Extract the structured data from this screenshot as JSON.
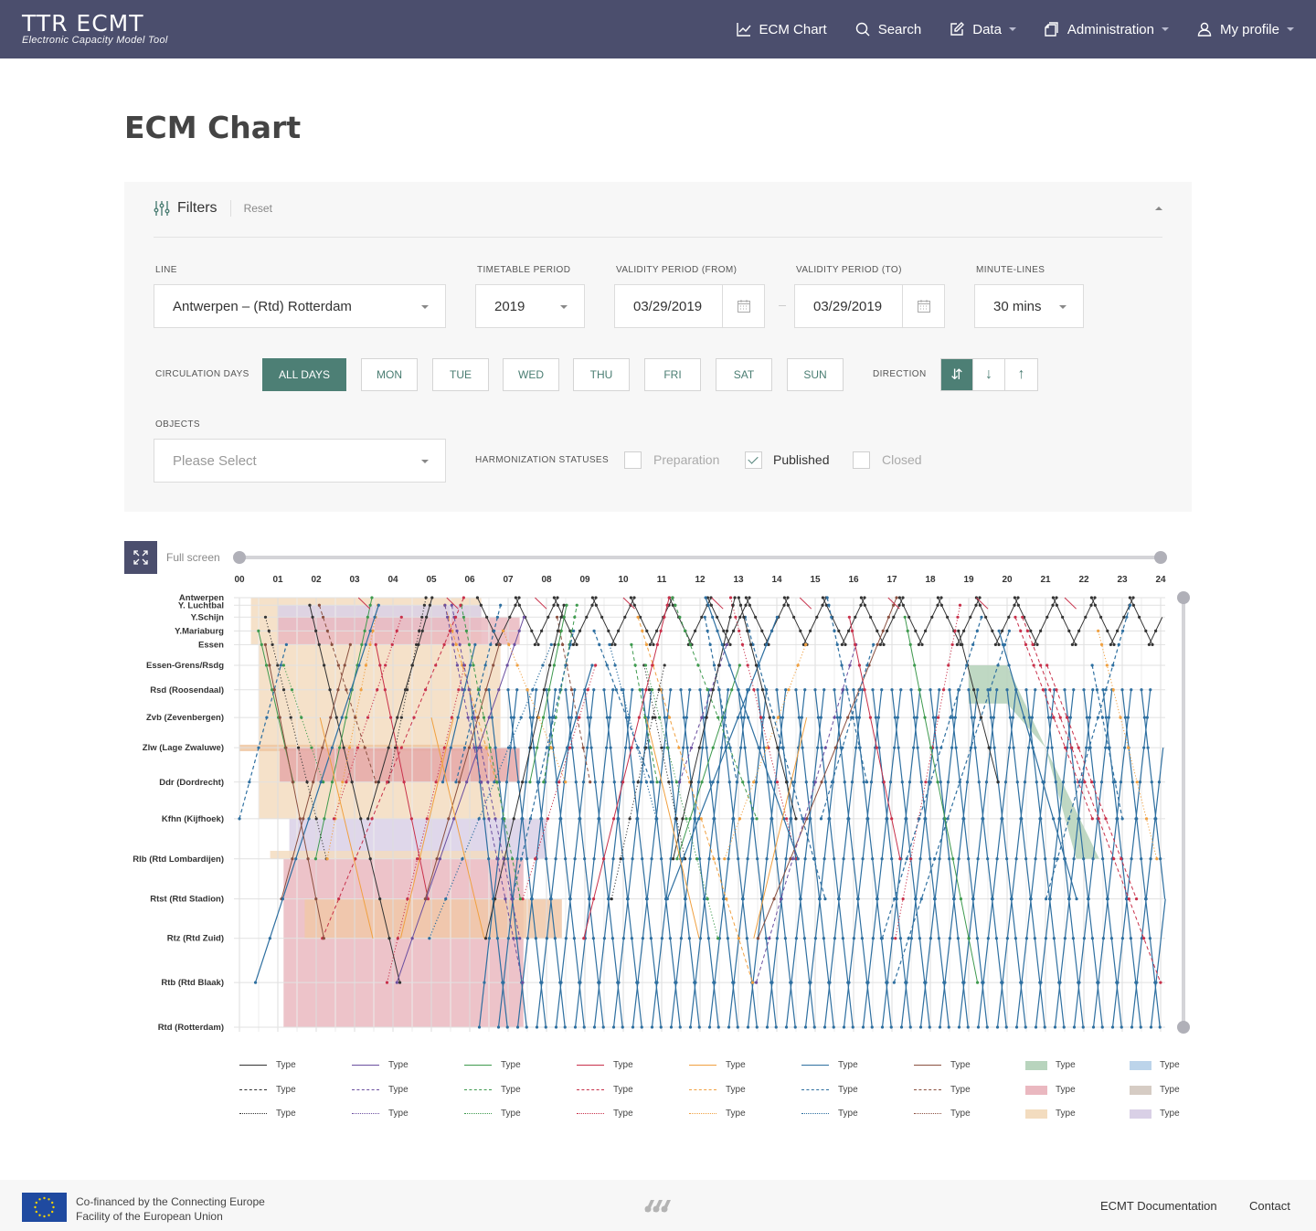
{
  "header": {
    "logo_text": "TTR ECMT",
    "logo_subtitle": "Electronic Capacity Model Tool",
    "nav": [
      {
        "label": "ECM Chart",
        "icon": "chart-line-icon",
        "has_caret": false
      },
      {
        "label": "Search",
        "icon": "search-icon",
        "has_caret": false
      },
      {
        "label": "Data",
        "icon": "edit-icon",
        "has_caret": true
      },
      {
        "label": "Administration",
        "icon": "documents-icon",
        "has_caret": true
      },
      {
        "label": "My profile",
        "icon": "user-icon",
        "has_caret": true
      }
    ]
  },
  "page": {
    "title": "ECM Chart"
  },
  "filters": {
    "title": "Filters",
    "reset_label": "Reset",
    "line": {
      "label": "LINE",
      "value": "Antwerpen – (Rtd) Rotterdam"
    },
    "timetable_period": {
      "label": "TIMETABLE PERIOD",
      "value": "2019"
    },
    "validity_from": {
      "label": "VALIDITY PERIOD (FROM)",
      "value": "03/29/2019"
    },
    "validity_to": {
      "label": "VALIDITY PERIOD (TO)",
      "value": "03/29/2019"
    },
    "minute_lines": {
      "label": "MINUTE-LINES",
      "value": "30 mins"
    },
    "circulation_days": {
      "label": "CIRCULATION DAYS",
      "options": [
        "ALL DAYS",
        "MON",
        "TUE",
        "WED",
        "THU",
        "FRI",
        "SAT",
        "SUN"
      ],
      "selected": "ALL DAYS"
    },
    "direction": {
      "label": "DIRECTION",
      "options": [
        "⇵",
        "↓",
        "↑"
      ],
      "selected": "⇵"
    },
    "objects": {
      "label": "OBJECTS",
      "placeholder": "Please Select"
    },
    "harmonization": {
      "label": "HARMONIZATION STATUSES",
      "options": [
        {
          "label": "Preparation",
          "checked": false
        },
        {
          "label": "Published",
          "checked": true
        },
        {
          "label": "Closed",
          "checked": false
        }
      ]
    }
  },
  "chart_controls": {
    "fullscreen_label": "Full screen"
  },
  "chart_data": {
    "type": "line",
    "hours": [
      "00",
      "01",
      "02",
      "03",
      "04",
      "05",
      "06",
      "07",
      "08",
      "09",
      "10",
      "11",
      "12",
      "13",
      "14",
      "15",
      "16",
      "17",
      "18",
      "19",
      "20",
      "21",
      "22",
      "23",
      "24"
    ],
    "stations": [
      "Antwerpen",
      "Y. Luchtbal",
      "Y.Schijn",
      "Y.Mariaburg",
      "Essen",
      "Essen-Grens/Rsdg",
      "Rsd (Roosendaal)",
      "Zvb (Zevenbergen)",
      "Zlw (Lage Zwaluwe)",
      "Ddr (Dordrecht)",
      "Kfhn (Kijfhoek)",
      "Rlb (Rtd Lombardijen)",
      "Rtst (Rtd Stadion)",
      "Rtz (Rtd Zuid)",
      "Rtb (Rtd Blaak)",
      "Rtd (Rotterdam)"
    ],
    "station_km": [
      0,
      3.3,
      8.5,
      14.5,
      20.5,
      29.5,
      40.2,
      52.3,
      65.5,
      80.5,
      96.5,
      114,
      131.5,
      148.7,
      168,
      187.5
    ],
    "colors": {
      "black": "#333333",
      "purple": "#6b4fa0",
      "green": "#3e9a4e",
      "red": "#c8304a",
      "orange": "#f0a040",
      "blue": "#2e6fa0",
      "brown": "#8a5040"
    },
    "possessions": [
      {
        "from_h": 0.3,
        "to_h": 6.3,
        "st_from": 0,
        "st_to": 4,
        "color": "#f3dcbf"
      },
      {
        "from_h": 1.0,
        "to_h": 6.3,
        "st_from": 1,
        "st_to": 3,
        "color": "#d9d0e6"
      },
      {
        "from_h": 1.0,
        "to_h": 7.3,
        "st_from": 2,
        "st_to": 4,
        "color": "#eab8c0"
      },
      {
        "from_h": 0.5,
        "to_h": 6.8,
        "st_from": 4,
        "st_to": 10,
        "color": "#f3dcbf"
      },
      {
        "from_h": 0.0,
        "to_h": 6.5,
        "st_from": 7.9,
        "st_to": 8.1,
        "color": "#efc5a0"
      },
      {
        "from_h": 1.05,
        "to_h": 7.3,
        "st_from": 8.0,
        "st_to": 9.0,
        "color": "#e5a8a8"
      },
      {
        "from_h": 1.3,
        "to_h": 8.0,
        "st_from": 10,
        "st_to": 11,
        "color": "#d9d0e6"
      },
      {
        "from_h": 0.8,
        "to_h": 7.0,
        "st_from": 10.8,
        "st_to": 11,
        "color": "#f3dcbf"
      },
      {
        "from_h": 1.15,
        "to_h": 7.4,
        "st_from": 11,
        "st_to": 15,
        "color": "#eab8c0"
      },
      {
        "from_h": 1.7,
        "to_h": 8.4,
        "st_from": 12,
        "st_to": 13,
        "color": "#f0c8a8"
      }
    ],
    "path_area": {
      "color": "#b8d4bd",
      "points": [
        [
          19.0,
          5
        ],
        [
          20.0,
          5
        ],
        [
          21.0,
          8
        ],
        [
          22.4,
          11
        ],
        [
          21.8,
          11
        ],
        [
          21.0,
          8
        ],
        [
          20.0,
          6.5
        ],
        [
          19.0,
          6.5
        ]
      ]
    },
    "legend": [
      {
        "label": "Type",
        "kind": "line",
        "color": "#333333",
        "dash": "solid"
      },
      {
        "label": "Type",
        "kind": "line",
        "color": "#6b4fa0",
        "dash": "solid"
      },
      {
        "label": "Type",
        "kind": "line",
        "color": "#3e9a4e",
        "dash": "solid"
      },
      {
        "label": "Type",
        "kind": "line",
        "color": "#c8304a",
        "dash": "solid"
      },
      {
        "label": "Type",
        "kind": "line",
        "color": "#f0a040",
        "dash": "solid"
      },
      {
        "label": "Type",
        "kind": "line",
        "color": "#2e6fa0",
        "dash": "solid"
      },
      {
        "label": "Type",
        "kind": "line",
        "color": "#8a5040",
        "dash": "solid"
      },
      {
        "label": "Type",
        "kind": "box",
        "color": "#b8d4bd"
      },
      {
        "label": "Type",
        "kind": "box",
        "color": "#bcd4ea"
      },
      {
        "label": "Type",
        "kind": "line",
        "color": "#333333",
        "dash": "dashed"
      },
      {
        "label": "Type",
        "kind": "line",
        "color": "#6b4fa0",
        "dash": "dashed"
      },
      {
        "label": "Type",
        "kind": "line",
        "color": "#3e9a4e",
        "dash": "dashed"
      },
      {
        "label": "Type",
        "kind": "line",
        "color": "#c8304a",
        "dash": "dashed"
      },
      {
        "label": "Type",
        "kind": "line",
        "color": "#f0a040",
        "dash": "dashed"
      },
      {
        "label": "Type",
        "kind": "line",
        "color": "#2e6fa0",
        "dash": "dashed"
      },
      {
        "label": "Type",
        "kind": "line",
        "color": "#8a5040",
        "dash": "dashed"
      },
      {
        "label": "Type",
        "kind": "box",
        "color": "#eab8c0"
      },
      {
        "label": "Type",
        "kind": "box",
        "color": "#d6ccc4"
      },
      {
        "label": "Type",
        "kind": "line",
        "color": "#333333",
        "dash": "dotted"
      },
      {
        "label": "Type",
        "kind": "line",
        "color": "#6b4fa0",
        "dash": "dotted"
      },
      {
        "label": "Type",
        "kind": "line",
        "color": "#3e9a4e",
        "dash": "dotted"
      },
      {
        "label": "Type",
        "kind": "line",
        "color": "#c8304a",
        "dash": "dotted"
      },
      {
        "label": "Type",
        "kind": "line",
        "color": "#f0a040",
        "dash": "dotted"
      },
      {
        "label": "Type",
        "kind": "line",
        "color": "#2e6fa0",
        "dash": "dotted"
      },
      {
        "label": "Type",
        "kind": "line",
        "color": "#8a5040",
        "dash": "dotted"
      },
      {
        "label": "Type",
        "kind": "box",
        "color": "#f3dcbf"
      },
      {
        "label": "Type",
        "kind": "box",
        "color": "#d9d0e6"
      }
    ]
  },
  "footer": {
    "eu_text_line1": "Co-financed by the Connecting Europe",
    "eu_text_line2": "Facility of the European Union",
    "links": [
      "ECMT Documentation",
      "Contact"
    ]
  }
}
